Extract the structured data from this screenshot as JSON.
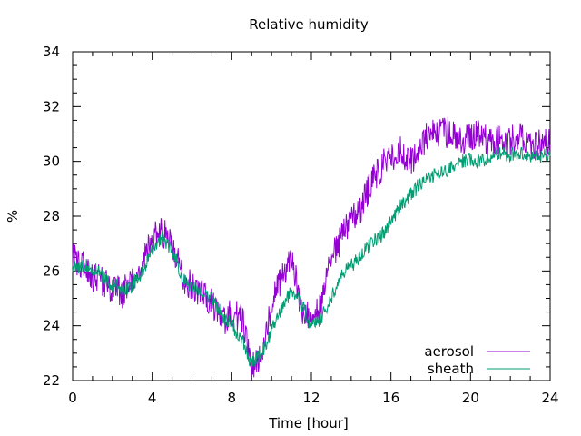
{
  "chart_data": {
    "type": "line",
    "title": "Relative humidity",
    "xlabel": "Time [hour]",
    "ylabel": "%",
    "xlim": [
      0,
      24
    ],
    "ylim": [
      22,
      34
    ],
    "xticks": [
      0,
      4,
      8,
      12,
      16,
      20,
      24
    ],
    "yticks": [
      22,
      24,
      26,
      28,
      30,
      32,
      34
    ],
    "grid": false,
    "legend_position": "bottom-right",
    "series": [
      {
        "name": "aerosol",
        "color": "#9400d3",
        "x": [
          0,
          0.5,
          1,
          1.5,
          2,
          2.5,
          3,
          3.5,
          4,
          4.5,
          5,
          5.5,
          6,
          6.5,
          7,
          7.5,
          8,
          8.5,
          9,
          9.5,
          10,
          10.5,
          11,
          11.5,
          12,
          12.5,
          13,
          13.5,
          14,
          14.5,
          15,
          15.5,
          16,
          16.5,
          17,
          17.5,
          18,
          18.5,
          19,
          19.5,
          20,
          20.5,
          21,
          21.5,
          22,
          22.5,
          23,
          23.5,
          24
        ],
        "y": [
          26.5,
          26.2,
          25.8,
          25.6,
          25.4,
          25.2,
          25.6,
          26.2,
          27.2,
          27.4,
          27.0,
          25.8,
          25.4,
          25.2,
          24.9,
          24.2,
          24.4,
          24.3,
          22.5,
          22.8,
          24.8,
          25.8,
          26.5,
          24.6,
          24.2,
          24.8,
          26.4,
          27.2,
          27.8,
          28.3,
          29.2,
          29.8,
          30.2,
          30.4,
          30.0,
          30.5,
          31.2,
          31.0,
          31.1,
          30.8,
          30.9,
          31.0,
          30.7,
          30.8,
          30.7,
          31.0,
          30.5,
          30.7,
          30.6
        ]
      },
      {
        "name": "sheath",
        "color": "#009e73",
        "x": [
          0,
          0.5,
          1,
          1.5,
          2,
          2.5,
          3,
          3.5,
          4,
          4.5,
          5,
          5.5,
          6,
          6.5,
          7,
          7.5,
          8,
          8.5,
          9,
          9.5,
          10,
          10.5,
          11,
          11.5,
          12,
          12.5,
          13,
          13.5,
          14,
          14.5,
          15,
          15.5,
          16,
          16.5,
          17,
          17.5,
          18,
          18.5,
          19,
          19.5,
          20,
          20.5,
          21,
          21.5,
          22,
          22.5,
          23,
          23.5,
          24
        ],
        "y": [
          26.1,
          26.2,
          26.1,
          25.8,
          25.5,
          25.3,
          25.5,
          26.0,
          26.8,
          27.2,
          26.8,
          25.8,
          25.4,
          25.3,
          25.0,
          24.4,
          24.0,
          23.5,
          22.6,
          23.0,
          23.8,
          24.6,
          25.3,
          24.8,
          24.0,
          24.3,
          25.0,
          25.8,
          26.2,
          26.6,
          27.0,
          27.3,
          27.8,
          28.4,
          28.8,
          29.2,
          29.4,
          29.6,
          29.8,
          30.0,
          30.1,
          30.0,
          30.2,
          30.3,
          30.2,
          30.3,
          30.2,
          30.2,
          30.2
        ]
      }
    ]
  }
}
